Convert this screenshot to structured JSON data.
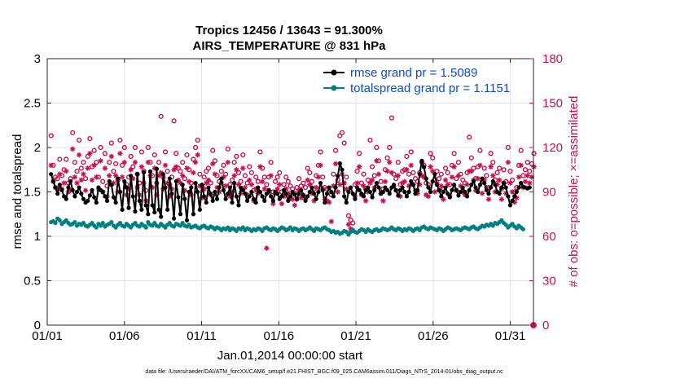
{
  "chart_data": {
    "type": "line",
    "title": "Tropics 12456 / 13643 = 91.300%",
    "subtitle": "AIRS_TEMPERATURE @ 831 hPa",
    "xlabel": "Jan.01,2014 00:00:00 start",
    "ylabel": "rmse and totalspread",
    "y2label": "# of obs: o=possible; ×=assimilated",
    "xlim": [
      0,
      31.5
    ],
    "ylim": [
      0,
      3
    ],
    "y2lim": [
      0,
      180
    ],
    "x_ticks": [
      0,
      5,
      10,
      15,
      20,
      25,
      30
    ],
    "x_tick_labels": [
      "01/01",
      "01/06",
      "01/11",
      "01/16",
      "01/21",
      "01/26",
      "01/31"
    ],
    "y_ticks": [
      0,
      0.5,
      1,
      1.5,
      2,
      2.5,
      3
    ],
    "y_tick_labels": [
      "0",
      "0.5",
      "1",
      "1.5",
      "2",
      "2.5",
      "3"
    ],
    "y2_ticks": [
      0,
      30,
      60,
      90,
      120,
      150,
      180
    ],
    "y2_tick_labels": [
      "0",
      "30",
      "60",
      "90",
      "120",
      "150",
      "180"
    ],
    "grid": true,
    "legend_position": "top-right",
    "footer": "data file: /Users/raeder/DAI/ATM_forcXX/CAM6_setup/f.e21.FHIST_BGC.f09_025.CAM6assim.011/Diags_NTrS_2014-01/obs_diag_output.nc",
    "colors": {
      "rmse": "#000000",
      "spread": "#008080",
      "obs": "#c8104d"
    },
    "series": [
      {
        "name": "rmse grand pr = 1.5089",
        "values": [
          1.7,
          1.62,
          1.55,
          1.48,
          1.58,
          1.52,
          1.45,
          1.42,
          1.55,
          1.62,
          1.52,
          1.45,
          1.5,
          1.55,
          1.48,
          1.42,
          1.38,
          1.4,
          1.46,
          1.52,
          1.44,
          1.38,
          1.55,
          1.52,
          1.5,
          1.45,
          1.4,
          1.62,
          1.58,
          1.44,
          1.38,
          1.65,
          1.5,
          1.3,
          1.62,
          1.55,
          1.32,
          1.68,
          1.45,
          1.28,
          1.7,
          1.4,
          1.3,
          1.72,
          1.35,
          1.25,
          1.73,
          1.35,
          1.27,
          1.76,
          1.3,
          1.22,
          1.7,
          1.55,
          1.3,
          1.65,
          1.48,
          1.2,
          1.62,
          1.44,
          1.25,
          1.58,
          1.42,
          1.18,
          1.5,
          1.55,
          1.25,
          1.6,
          1.5,
          1.3,
          1.58,
          1.45,
          1.38,
          1.55,
          1.48,
          1.4,
          1.5,
          1.42,
          1.55,
          1.65,
          1.52,
          1.42,
          1.48,
          1.55,
          1.38,
          1.6,
          1.45,
          1.35,
          1.55,
          1.52,
          1.48,
          1.4,
          1.45,
          1.5,
          1.42,
          1.38,
          1.55,
          1.5,
          1.45,
          1.4,
          1.48,
          1.52,
          1.45,
          1.4,
          1.5,
          1.48,
          1.42,
          1.45,
          1.52,
          1.48,
          1.4,
          1.45,
          1.5,
          1.47,
          1.42,
          1.48,
          1.52,
          1.46,
          1.4,
          1.45,
          1.5,
          1.55,
          1.48,
          1.42,
          1.5,
          1.6,
          1.52,
          1.38,
          1.48,
          1.55,
          1.5,
          1.45,
          1.55,
          1.68,
          1.82,
          1.75,
          1.45,
          1.38,
          1.5,
          1.55,
          1.48,
          1.42,
          1.55,
          1.52,
          1.48,
          1.45,
          1.52,
          1.55,
          1.5,
          1.44,
          1.52,
          1.6,
          1.55,
          1.48,
          1.5,
          1.55,
          1.52,
          1.48,
          1.55,
          1.58,
          1.52,
          1.46,
          1.52,
          1.55,
          1.5,
          1.45,
          1.5,
          1.62,
          1.58,
          1.48,
          1.52,
          1.7,
          1.85,
          1.78,
          1.65,
          1.55,
          1.5,
          1.62,
          1.7,
          1.58,
          1.52,
          1.45,
          1.5,
          1.55,
          1.48,
          1.44,
          1.52,
          1.58,
          1.52,
          1.46,
          1.5,
          1.55,
          1.5,
          1.45,
          1.52,
          1.58,
          1.62,
          1.55,
          1.5,
          1.58,
          1.65,
          1.6,
          1.52,
          1.48,
          1.55,
          1.62,
          1.58,
          1.5,
          1.48,
          1.55,
          1.6,
          1.55,
          1.45,
          1.35,
          1.4,
          1.45,
          1.5,
          1.55,
          1.6,
          1.56,
          1.55,
          1.54,
          1.55
        ]
      },
      {
        "name": "totalspread grand pr = 1.1151",
        "values": [
          1.16,
          1.17,
          1.15,
          1.2,
          1.18,
          1.14,
          1.16,
          1.18,
          1.15,
          1.13,
          1.14,
          1.16,
          1.12,
          1.14,
          1.13,
          1.15,
          1.12,
          1.11,
          1.13,
          1.15,
          1.12,
          1.1,
          1.14,
          1.12,
          1.15,
          1.11,
          1.13,
          1.14,
          1.16,
          1.12,
          1.1,
          1.13,
          1.15,
          1.12,
          1.11,
          1.14,
          1.12,
          1.1,
          1.13,
          1.15,
          1.12,
          1.11,
          1.14,
          1.12,
          1.1,
          1.16,
          1.13,
          1.12,
          1.15,
          1.12,
          1.11,
          1.14,
          1.12,
          1.1,
          1.13,
          1.15,
          1.12,
          1.11,
          1.14,
          1.13,
          1.12,
          1.15,
          1.12,
          1.11,
          1.13,
          1.1,
          1.11,
          1.12,
          1.1,
          1.09,
          1.11,
          1.12,
          1.1,
          1.09,
          1.11,
          1.1,
          1.08,
          1.1,
          1.09,
          1.07,
          1.09,
          1.08,
          1.1,
          1.07,
          1.09,
          1.08,
          1.06,
          1.09,
          1.08,
          1.1,
          1.07,
          1.09,
          1.08,
          1.06,
          1.08,
          1.07,
          1.09,
          1.08,
          1.06,
          1.09,
          1.1,
          1.08,
          1.07,
          1.09,
          1.08,
          1.06,
          1.08,
          1.1,
          1.09,
          1.07,
          1.08,
          1.1,
          1.07,
          1.09,
          1.08,
          1.06,
          1.08,
          1.09,
          1.07,
          1.08,
          1.1,
          1.08,
          1.06,
          1.09,
          1.08,
          1.07,
          1.09,
          1.1,
          1.08,
          1.07,
          1.05,
          1.06,
          1.04,
          1.05,
          1.03,
          1.04,
          1.06,
          1.05,
          1.02,
          1.05,
          1.07,
          1.05,
          1.04,
          1.06,
          1.08,
          1.07,
          1.05,
          1.08,
          1.06,
          1.05,
          1.07,
          1.08,
          1.06,
          1.07,
          1.09,
          1.08,
          1.07,
          1.08,
          1.1,
          1.08,
          1.07,
          1.09,
          1.08,
          1.06,
          1.08,
          1.07,
          1.09,
          1.08,
          1.06,
          1.08,
          1.09,
          1.07,
          1.1,
          1.11,
          1.09,
          1.08,
          1.1,
          1.09,
          1.08,
          1.07,
          1.09,
          1.08,
          1.06,
          1.08,
          1.1,
          1.09,
          1.07,
          1.08,
          1.09,
          1.08,
          1.07,
          1.09,
          1.1,
          1.09,
          1.08,
          1.1,
          1.11,
          1.09,
          1.08,
          1.1,
          1.12,
          1.11,
          1.13,
          1.12,
          1.14,
          1.12,
          1.15,
          1.14,
          1.16,
          1.18,
          1.15,
          1.13,
          1.1,
          1.12,
          1.14,
          1.11,
          1.09,
          1.12,
          1.1,
          1.08
        ]
      }
    ],
    "obs_possible": [
      128,
      108,
      100,
      99,
      112,
      101,
      105,
      112,
      96,
      99,
      130,
      110,
      104,
      125,
      106,
      110,
      99,
      114,
      126,
      107,
      118,
      110,
      100,
      120,
      97,
      116,
      94,
      110,
      123,
      104,
      109,
      98,
      125,
      108,
      120,
      95,
      100,
      114,
      107,
      120,
      102,
      96,
      117,
      104,
      91,
      120,
      110,
      101,
      115,
      96,
      110,
      141,
      100,
      117,
      104,
      95,
      100,
      138,
      116,
      106,
      104,
      110,
      99,
      115,
      105,
      96,
      112,
      120,
      125,
      102,
      94,
      100,
      104,
      106,
      96,
      118,
      111,
      101,
      97,
      104,
      108,
      102,
      119,
      95,
      98,
      110,
      114,
      103,
      97,
      115,
      101,
      96,
      107,
      103,
      91,
      100,
      97,
      117,
      106,
      100,
      95,
      100,
      110,
      90,
      97,
      100,
      103,
      90,
      95,
      100,
      97,
      94,
      92,
      89,
      93,
      99,
      94,
      96,
      93,
      106,
      103,
      97,
      92,
      101,
      108,
      117,
      100,
      93,
      92,
      90,
      88,
      102,
      118,
      98,
      128,
      130,
      123,
      100,
      74,
      71,
      69,
      95,
      104,
      116,
      96,
      102,
      92,
      98,
      125,
      107,
      101,
      120,
      111,
      97,
      92,
      105,
      113,
      120,
      140,
      102,
      99,
      110,
      95,
      104,
      105,
      114,
      102,
      117,
      103,
      99,
      97,
      103,
      110,
      108,
      96,
      95,
      116,
      113,
      98,
      104,
      99,
      102,
      92,
      106,
      103,
      95,
      108,
      116,
      99,
      110,
      102,
      98,
      96,
      103,
      127,
      113,
      106,
      99,
      107,
      118,
      97,
      106,
      101,
      93,
      116,
      110,
      98,
      103,
      106,
      92,
      105,
      97,
      120,
      104,
      98,
      90,
      93,
      108,
      118,
      101,
      105,
      110,
      104,
      109,
      116
    ],
    "obs_assimilated": [
      108,
      97,
      93,
      92,
      102,
      92,
      96,
      104,
      90,
      91,
      119,
      100,
      96,
      115,
      98,
      102,
      91,
      106,
      116,
      98,
      108,
      100,
      92,
      111,
      90,
      106,
      87,
      101,
      114,
      96,
      101,
      90,
      116,
      100,
      110,
      88,
      92,
      105,
      99,
      110,
      93,
      88,
      107,
      96,
      84,
      110,
      101,
      93,
      106,
      88,
      101,
      103,
      92,
      108,
      96,
      87,
      92,
      105,
      107,
      98,
      96,
      101,
      91,
      106,
      97,
      88,
      103,
      110,
      115,
      94,
      86,
      92,
      96,
      98,
      88,
      109,
      102,
      93,
      90,
      96,
      100,
      94,
      110,
      87,
      90,
      101,
      105,
      95,
      89,
      106,
      93,
      88,
      98,
      95,
      84,
      92,
      89,
      107,
      97,
      92,
      52,
      91,
      101,
      82,
      89,
      92,
      95,
      82,
      87,
      92,
      89,
      86,
      85,
      81,
      85,
      91,
      86,
      88,
      85,
      98,
      95,
      89,
      84,
      93,
      100,
      108,
      92,
      85,
      84,
      83,
      70,
      94,
      109,
      90,
      95,
      102,
      96,
      92,
      68,
      65,
      64,
      87,
      96,
      107,
      88,
      94,
      84,
      90,
      96,
      98,
      93,
      111,
      102,
      89,
      84,
      97,
      104,
      110,
      103,
      94,
      91,
      101,
      87,
      96,
      97,
      105,
      94,
      108,
      95,
      91,
      89,
      95,
      101,
      100,
      88,
      87,
      107,
      104,
      90,
      96,
      91,
      94,
      85,
      98,
      95,
      87,
      100,
      107,
      91,
      101,
      94,
      90,
      88,
      95,
      104,
      104,
      98,
      91,
      99,
      108,
      89,
      98,
      93,
      85,
      107,
      101,
      90,
      95,
      98,
      85,
      96,
      89,
      110,
      96,
      90,
      83,
      86,
      100,
      108,
      93,
      97,
      101,
      96,
      100,
      107
    ]
  }
}
